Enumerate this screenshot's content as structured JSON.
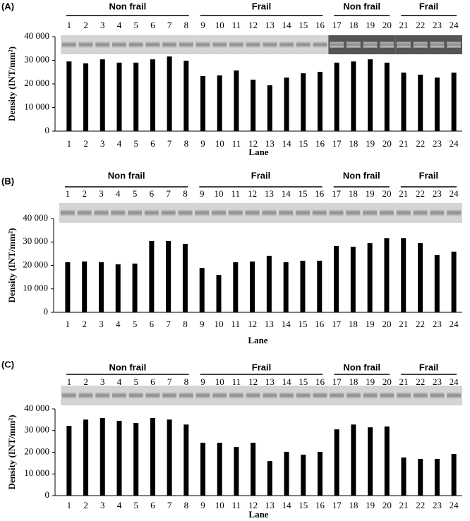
{
  "chart_data": [
    {
      "type": "bar",
      "panel": "(A)",
      "ylabel": "Density (INT/mm²)",
      "xlabel": "Lane",
      "color": "#000000",
      "groups": [
        "Non frail",
        "Frail",
        "Non frail",
        "Frail"
      ],
      "categories": [
        "1",
        "2",
        "3",
        "4",
        "5",
        "6",
        "7",
        "8",
        "9",
        "10",
        "11",
        "12",
        "13",
        "14",
        "15",
        "16",
        "17",
        "18",
        "19",
        "20",
        "21",
        "22",
        "23",
        "24"
      ],
      "values": [
        29500,
        28700,
        30400,
        29000,
        29000,
        30400,
        31600,
        29800,
        23300,
        23600,
        25700,
        21800,
        19400,
        22700,
        24500,
        25100,
        29000,
        29500,
        30400,
        29000,
        24800,
        23900,
        22700,
        24800
      ],
      "ylim": [
        0,
        40000
      ],
      "yticks": [
        0,
        {
          "value": 10000,
          "label": "10 000"
        },
        {
          "value": 20000,
          "label": "20 000"
        },
        {
          "value": 30000,
          "label": "30 000"
        },
        {
          "value": 40000,
          "label": "40 000"
        }
      ]
    },
    {
      "type": "bar",
      "panel": "(B)",
      "ylabel": "Density (INT/mm²)",
      "xlabel": "Lane",
      "color": "#000000",
      "groups": [
        "Non frail",
        "Frail",
        "Non frail",
        "Frail"
      ],
      "categories": [
        "1",
        "2",
        "3",
        "4",
        "5",
        "6",
        "7",
        "8",
        "9",
        "10",
        "11",
        "12",
        "13",
        "14",
        "15",
        "16",
        "17",
        "18",
        "19",
        "20",
        "21",
        "22",
        "23",
        "24"
      ],
      "values": [
        21400,
        21700,
        21400,
        20500,
        20800,
        30400,
        30400,
        29200,
        18900,
        15900,
        21400,
        21700,
        24100,
        21400,
        22000,
        22000,
        28300,
        28000,
        29500,
        31600,
        31600,
        29500,
        24400,
        25900
      ],
      "ylim": [
        0,
        40000
      ],
      "yticks": [
        0,
        {
          "value": 10000,
          "label": "10 000"
        },
        {
          "value": 20000,
          "label": "20 000"
        },
        {
          "value": 30000,
          "label": "30 000"
        },
        {
          "value": 40000,
          "label": "40 000"
        }
      ]
    },
    {
      "type": "bar",
      "panel": "(C)",
      "ylabel": "Density (INT/mm²)",
      "xlabel": "Lane",
      "color": "#000000",
      "groups": [
        "Non frail",
        "Frail",
        "Non frail",
        "Frail"
      ],
      "categories": [
        "1",
        "2",
        "3",
        "4",
        "5",
        "6",
        "7",
        "8",
        "9",
        "10",
        "11",
        "12",
        "13",
        "14",
        "15",
        "16",
        "17",
        "18",
        "19",
        "20",
        "21",
        "22",
        "23",
        "24"
      ],
      "values": [
        32200,
        35100,
        35800,
        34500,
        33500,
        35800,
        35100,
        32800,
        24400,
        24400,
        22400,
        24400,
        15900,
        20200,
        18900,
        20200,
        30600,
        32800,
        31500,
        31900,
        17600,
        16900,
        16900,
        19200
      ],
      "ylim": [
        0,
        40000
      ],
      "yticks": [
        0,
        {
          "value": 10000,
          "label": "10 000"
        },
        {
          "value": 20000,
          "label": "20 000"
        },
        {
          "value": 30000,
          "label": "30 000"
        },
        {
          "value": 40000,
          "label": "40 000"
        }
      ]
    }
  ]
}
